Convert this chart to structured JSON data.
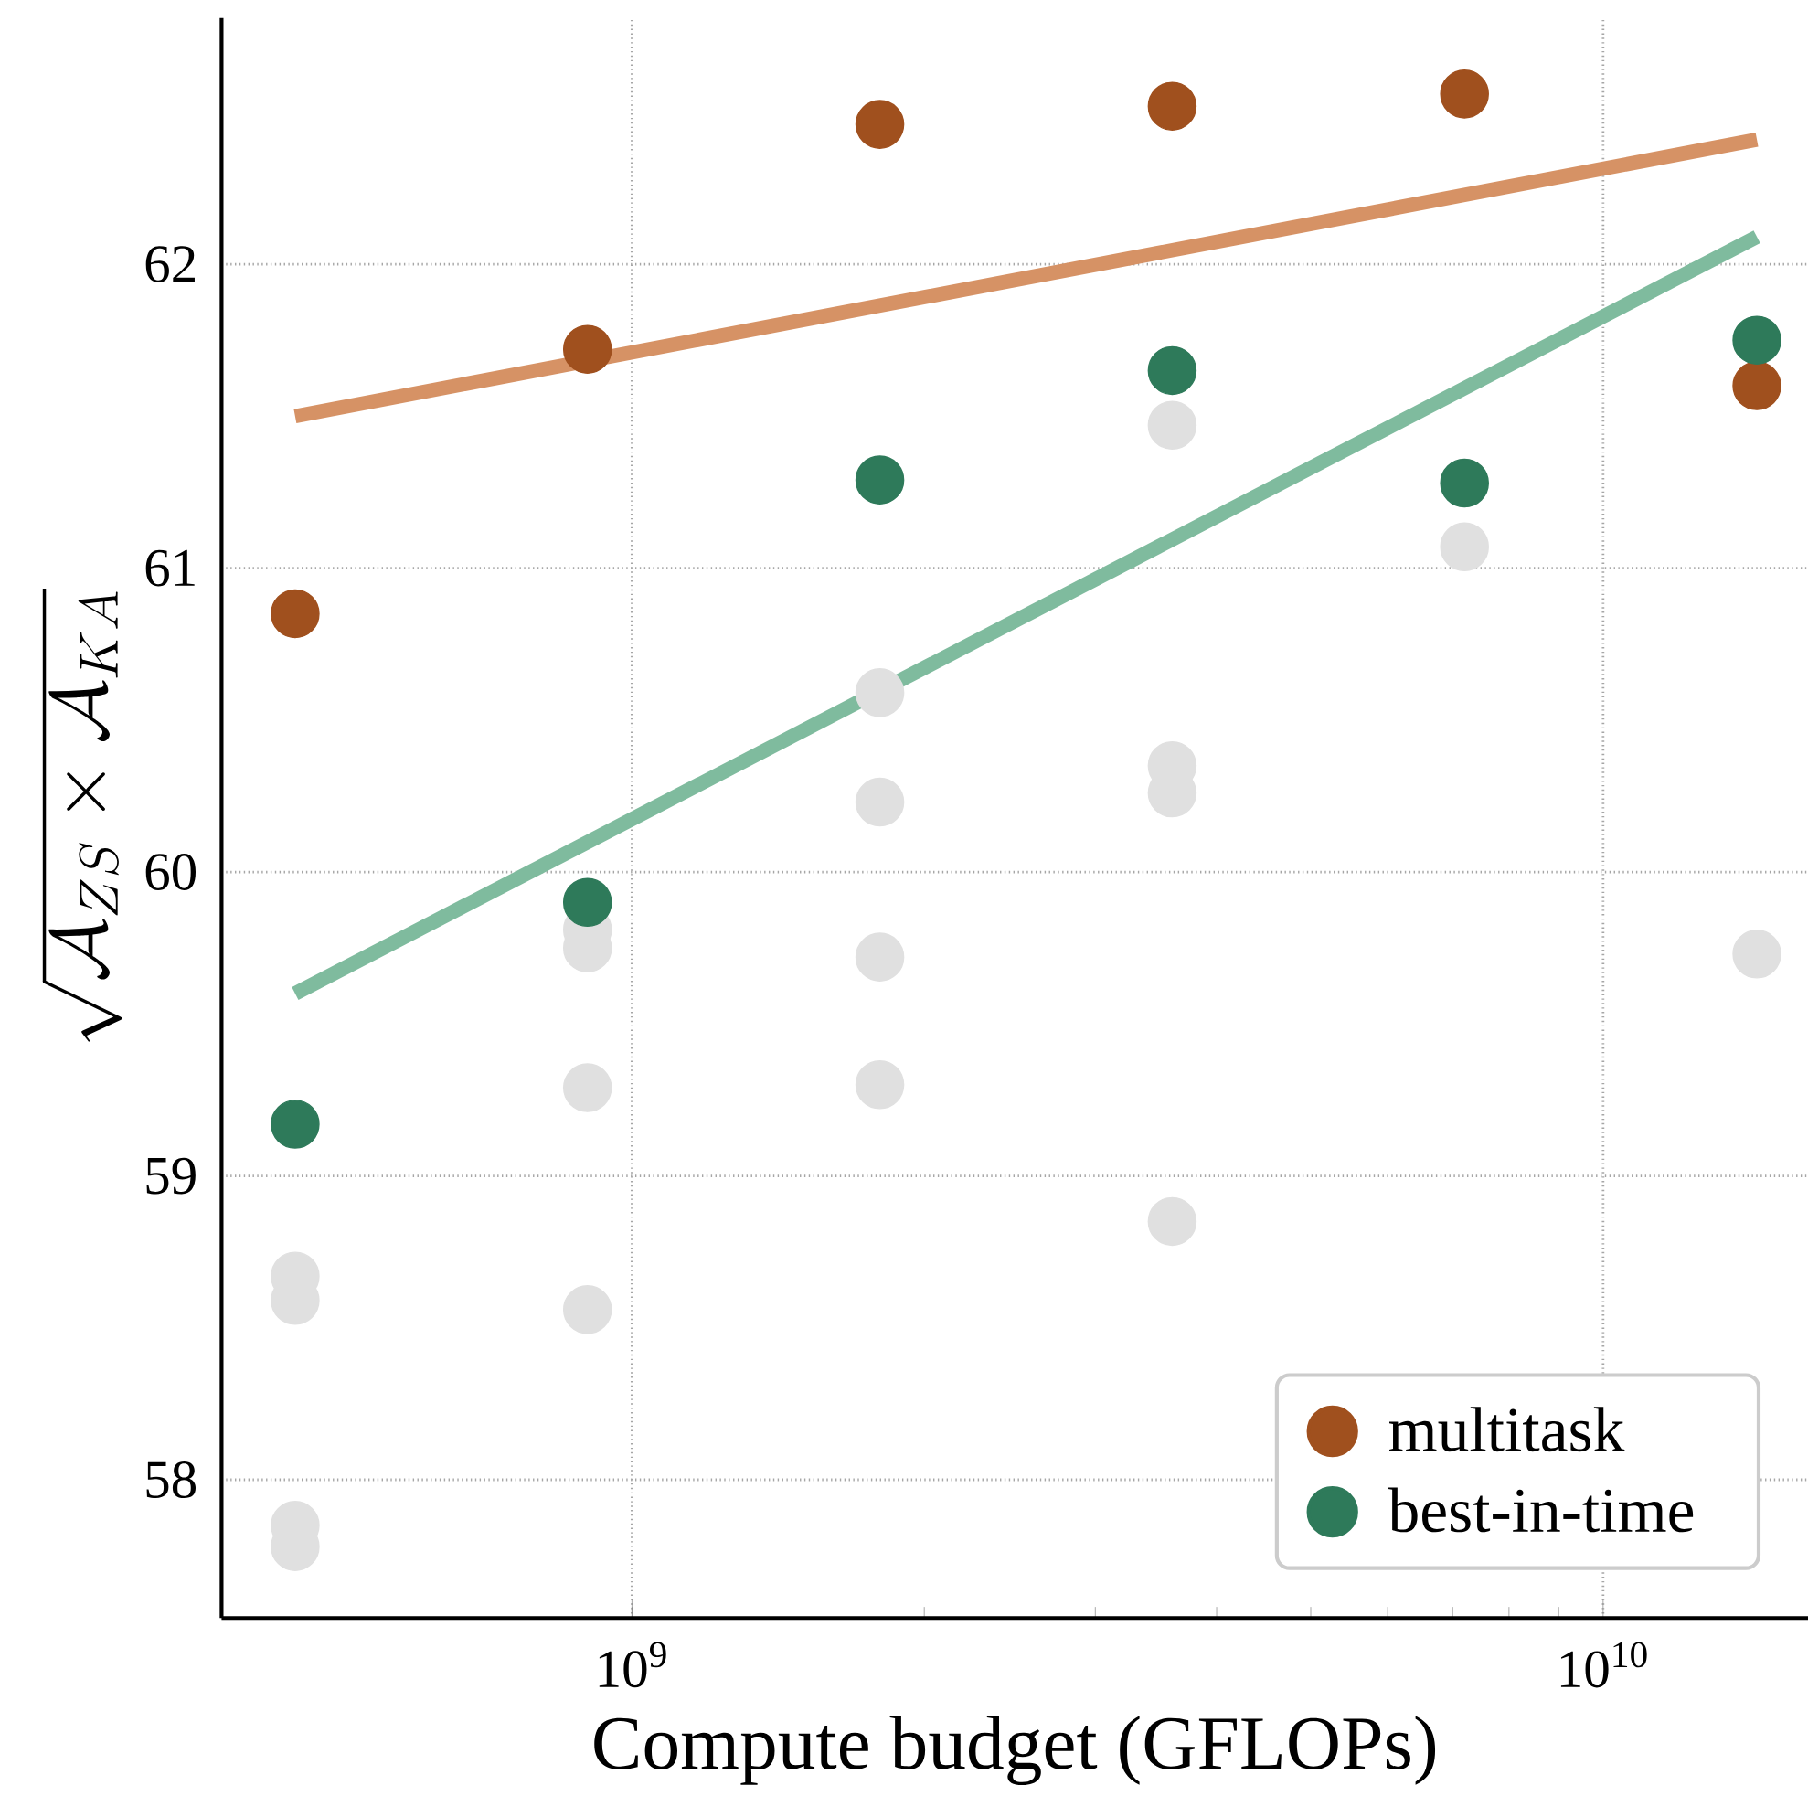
{
  "chart_data": {
    "type": "scatter",
    "xlabel": "Compute budget (GFLOPs)",
    "ylabel": "\\sqrt{\\mathcal{A}_{ZS} \\times \\mathcal{A}_{KA}}",
    "log": "x",
    "xlim": [
      378000000,
      16260000000
    ],
    "ylim": [
      57.545,
      62.81
    ],
    "xticks": [
      {
        "value": 1000000000,
        "label": "10$^{9}$"
      },
      {
        "value": 10000000000,
        "label": "10$^{10}$"
      }
    ],
    "yticks": [
      58,
      59,
      60,
      61,
      62
    ],
    "grid": true,
    "legend": "bottom right",
    "series": [
      {
        "color": "#e0e0e0",
        "x": [
          450000000,
          450000000,
          450000000,
          450000000,
          900000000,
          900000000,
          900000000,
          900000000,
          1800000000,
          1800000000,
          1800000000,
          1800000000,
          3600000000,
          3600000000,
          3600000000,
          3600000000,
          7200000000,
          14400000000
        ],
        "values": [
          58.67,
          58.59,
          57.85,
          57.78,
          59.81,
          59.75,
          59.29,
          58.56,
          60.59,
          60.23,
          59.72,
          59.3,
          61.47,
          60.35,
          60.26,
          58.85,
          61.07,
          59.73
        ]
      },
      {
        "type": "line",
        "color": "#d69265",
        "x": [
          450000000,
          14400000000
        ],
        "values": [
          61.5,
          62.41
        ]
      },
      {
        "type": "line",
        "color": "#7fbb9e",
        "x": [
          450000000,
          14400000000
        ],
        "values": [
          59.6,
          62.09
        ]
      },
      {
        "name": "multitask",
        "color": "#a0501e",
        "x": [
          450000000,
          900000000,
          1800000000,
          3600000000,
          7200000000,
          14400000000
        ],
        "values": [
          60.85,
          61.72,
          62.46,
          62.52,
          62.56,
          61.6
        ]
      },
      {
        "name": "best-in-time",
        "color": "#2e7a5a",
        "x": [
          450000000,
          900000000,
          1800000000,
          3600000000,
          7200000000,
          14400000000
        ],
        "values": [
          59.17,
          59.9,
          61.29,
          61.65,
          61.28,
          61.75
        ]
      }
    ]
  }
}
